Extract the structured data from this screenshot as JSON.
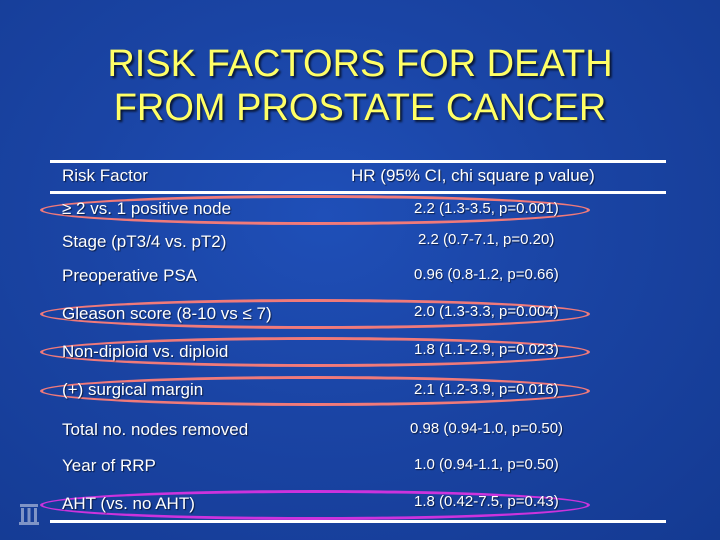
{
  "title": {
    "line1": "RISK FACTORS FOR DEATH",
    "line2": "FROM PROSTATE CANCER"
  },
  "table": {
    "header": {
      "risk_factor": "Risk Factor",
      "hr": "HR (95% CI, chi square p value)"
    },
    "rows": [
      {
        "factor": "≥ 2 vs. 1 positive node",
        "hr": "2.2 (1.3-3.5, p=0.001)"
      },
      {
        "factor": "Stage (pT3/4 vs. pT2)",
        "hr": "2.2 (0.7-7.1, p=0.20)"
      },
      {
        "factor": "Preoperative PSA",
        "hr": "0.96 (0.8-1.2, p=0.66)"
      },
      {
        "factor": "Gleason score (8-10 vs ≤ 7)",
        "hr": "2.0 (1.3-3.3, p=0.004)"
      },
      {
        "factor": "Non-diploid vs. diploid",
        "hr": "1.8 (1.1-2.9, p=0.023)"
      },
      {
        "factor": "(+) surgical margin",
        "hr": "2.1 (1.2-3.9, p=0.016)"
      },
      {
        "factor": "Total no. nodes removed",
        "hr": "0.98 (0.94-1.0, p=0.50)"
      },
      {
        "factor": "Year of RRP",
        "hr": "1.0 (0.94-1.1, p=0.50)"
      },
      {
        "factor": "AHT (vs. no AHT)",
        "hr": "1.8 (0.42-7.5, p=0.43)"
      }
    ]
  },
  "colors": {
    "background": "#1a44a4",
    "title": "#ffff66",
    "text": "#ffffff",
    "highlight_salmon": "#f07a7a",
    "highlight_magenta": "#cc33dd"
  },
  "icons": {
    "logo": "institution-logo-icon"
  }
}
